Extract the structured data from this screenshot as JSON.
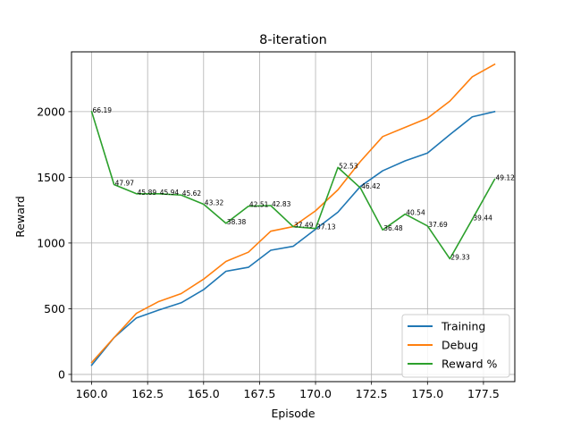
{
  "chart_data": {
    "type": "line",
    "title": "8-iteration",
    "xlabel": "Episode",
    "ylabel": "Reward",
    "xlim": [
      159.1,
      178.9
    ],
    "ylim": [
      -55,
      2455
    ],
    "xticks": [
      160,
      162.5,
      165,
      167.5,
      170,
      172.5,
      175,
      177.5
    ],
    "xtick_labels": [
      "160.0",
      "162.5",
      "165.0",
      "167.5",
      "170.0",
      "172.5",
      "175.0",
      "177.5"
    ],
    "yticks": [
      0,
      500,
      1000,
      1500,
      2000
    ],
    "ytick_labels": [
      "0",
      "500",
      "1000",
      "1500",
      "2000"
    ],
    "grid": true,
    "legend_position": "lower-right",
    "x": [
      160,
      161,
      162,
      163,
      164,
      165,
      166,
      167,
      168,
      169,
      170,
      171,
      172,
      173,
      174,
      175,
      176,
      177,
      178
    ],
    "series": [
      {
        "name": "Training",
        "color": "#1f77b4",
        "values": [
          70,
          280,
          430,
          490,
          545,
          645,
          785,
          815,
          945,
          975,
          1105,
          1235,
          1430,
          1550,
          1625,
          1685,
          1825,
          1960,
          2000
        ]
      },
      {
        "name": "Debug",
        "color": "#ff7f0e",
        "values": [
          90,
          280,
          465,
          555,
          615,
          725,
          860,
          930,
          1090,
          1125,
          1245,
          1405,
          1620,
          1810,
          1880,
          1950,
          2080,
          2265,
          2360
        ]
      },
      {
        "name": "Reward %",
        "color": "#2ca02c",
        "values": [
          2000,
          1445,
          1375,
          1375,
          1365,
          1295,
          1150,
          1280,
          1285,
          1125,
          1110,
          1575,
          1420,
          1100,
          1220,
          1130,
          880,
          1180,
          1485
        ],
        "point_labels": [
          "66.19",
          "47.97",
          "45.89",
          "45.94",
          "45.62",
          "43.32",
          "38.38",
          "42.51",
          "42.83",
          "37.49",
          "37.13",
          "52.53",
          "46.42",
          "36.48",
          "40.54",
          "37.69",
          "29.33",
          "39.44",
          "49.12"
        ]
      }
    ]
  }
}
